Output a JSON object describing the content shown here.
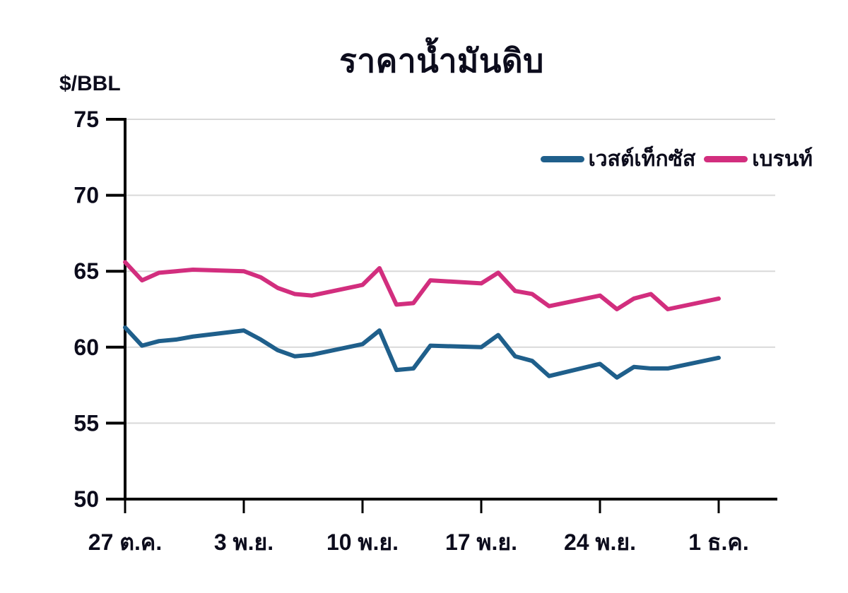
{
  "title": "ราคาน้ำมันดิบ",
  "y_axis_unit": "$/BBL",
  "chart_data": {
    "type": "line",
    "title": "ราคาน้ำมันดิบ",
    "ylabel": "$/BBL",
    "xlabel": "",
    "ylim": [
      50,
      75
    ],
    "y_ticks": [
      50,
      55,
      60,
      65,
      70,
      75
    ],
    "y_gridlines": [
      55,
      60,
      65,
      70,
      75
    ],
    "grid": true,
    "legend_position": "top-right",
    "x_note": "daily business-day points, offsets are calendar days from 27 Oct",
    "x_offsets": [
      0,
      1,
      2,
      3,
      4,
      7,
      8,
      9,
      10,
      11,
      14,
      15,
      16,
      17,
      18,
      21,
      22,
      23,
      24,
      25,
      28,
      29,
      30,
      31,
      32,
      35
    ],
    "x_ticks": [
      {
        "offset": 0,
        "label": "27 ต.ค."
      },
      {
        "offset": 7,
        "label": "3 พ.ย."
      },
      {
        "offset": 14,
        "label": "10 พ.ย."
      },
      {
        "offset": 21,
        "label": "17 พ.ย."
      },
      {
        "offset": 28,
        "label": "24 พ.ย."
      },
      {
        "offset": 35,
        "label": "1 ธ.ค."
      }
    ],
    "series": [
      {
        "name": "เวสต์เท็กซัส",
        "color": "#1F5F8B",
        "values": [
          61.3,
          60.1,
          60.4,
          60.5,
          60.7,
          61.1,
          60.5,
          59.8,
          59.4,
          59.5,
          60.2,
          61.1,
          58.5,
          58.6,
          60.1,
          60.0,
          60.8,
          59.4,
          59.1,
          58.1,
          58.9,
          58.0,
          58.7,
          58.6,
          58.6,
          59.3
        ]
      },
      {
        "name": "เบรนท์",
        "color": "#D22E7E",
        "values": [
          65.6,
          64.4,
          64.9,
          65.0,
          65.1,
          65.0,
          64.6,
          63.9,
          63.5,
          63.4,
          64.1,
          65.2,
          62.8,
          62.9,
          64.4,
          64.2,
          64.9,
          63.7,
          63.5,
          62.7,
          63.4,
          62.5,
          63.2,
          63.5,
          62.5,
          63.2
        ]
      }
    ],
    "colors": {
      "axis": "#000000",
      "grid": "#D9D9D9",
      "text": "#0c0c1c",
      "background": "#ffffff"
    }
  }
}
